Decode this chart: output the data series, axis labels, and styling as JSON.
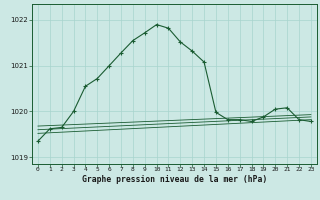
{
  "bg_color": "#cce8e4",
  "grid_color": "#a8d4ce",
  "line_color": "#1a5c32",
  "title": "Graphe pression niveau de la mer (hPa)",
  "ylabel_values": [
    1019,
    1020,
    1021,
    1022
  ],
  "xlim": [
    -0.5,
    23.5
  ],
  "ylim": [
    1018.85,
    1022.35
  ],
  "main_series": [
    [
      0,
      1019.35
    ],
    [
      1,
      1019.62
    ],
    [
      2,
      1019.65
    ],
    [
      3,
      1020.0
    ],
    [
      4,
      1020.55
    ],
    [
      5,
      1020.72
    ],
    [
      6,
      1021.0
    ],
    [
      7,
      1021.28
    ],
    [
      8,
      1021.55
    ],
    [
      9,
      1021.72
    ],
    [
      10,
      1021.9
    ],
    [
      11,
      1021.82
    ],
    [
      12,
      1021.52
    ],
    [
      13,
      1021.32
    ],
    [
      14,
      1021.08
    ],
    [
      15,
      1019.98
    ],
    [
      16,
      1019.82
    ],
    [
      17,
      1019.82
    ],
    [
      18,
      1019.78
    ],
    [
      19,
      1019.88
    ],
    [
      20,
      1020.05
    ],
    [
      21,
      1020.08
    ],
    [
      22,
      1019.82
    ],
    [
      23,
      1019.78
    ]
  ],
  "flat_series1": [
    [
      0,
      1019.52
    ],
    [
      23,
      1019.82
    ]
  ],
  "flat_series2": [
    [
      0,
      1019.6
    ],
    [
      23,
      1019.88
    ]
  ],
  "flat_series3": [
    [
      0,
      1019.68
    ],
    [
      23,
      1019.93
    ]
  ]
}
